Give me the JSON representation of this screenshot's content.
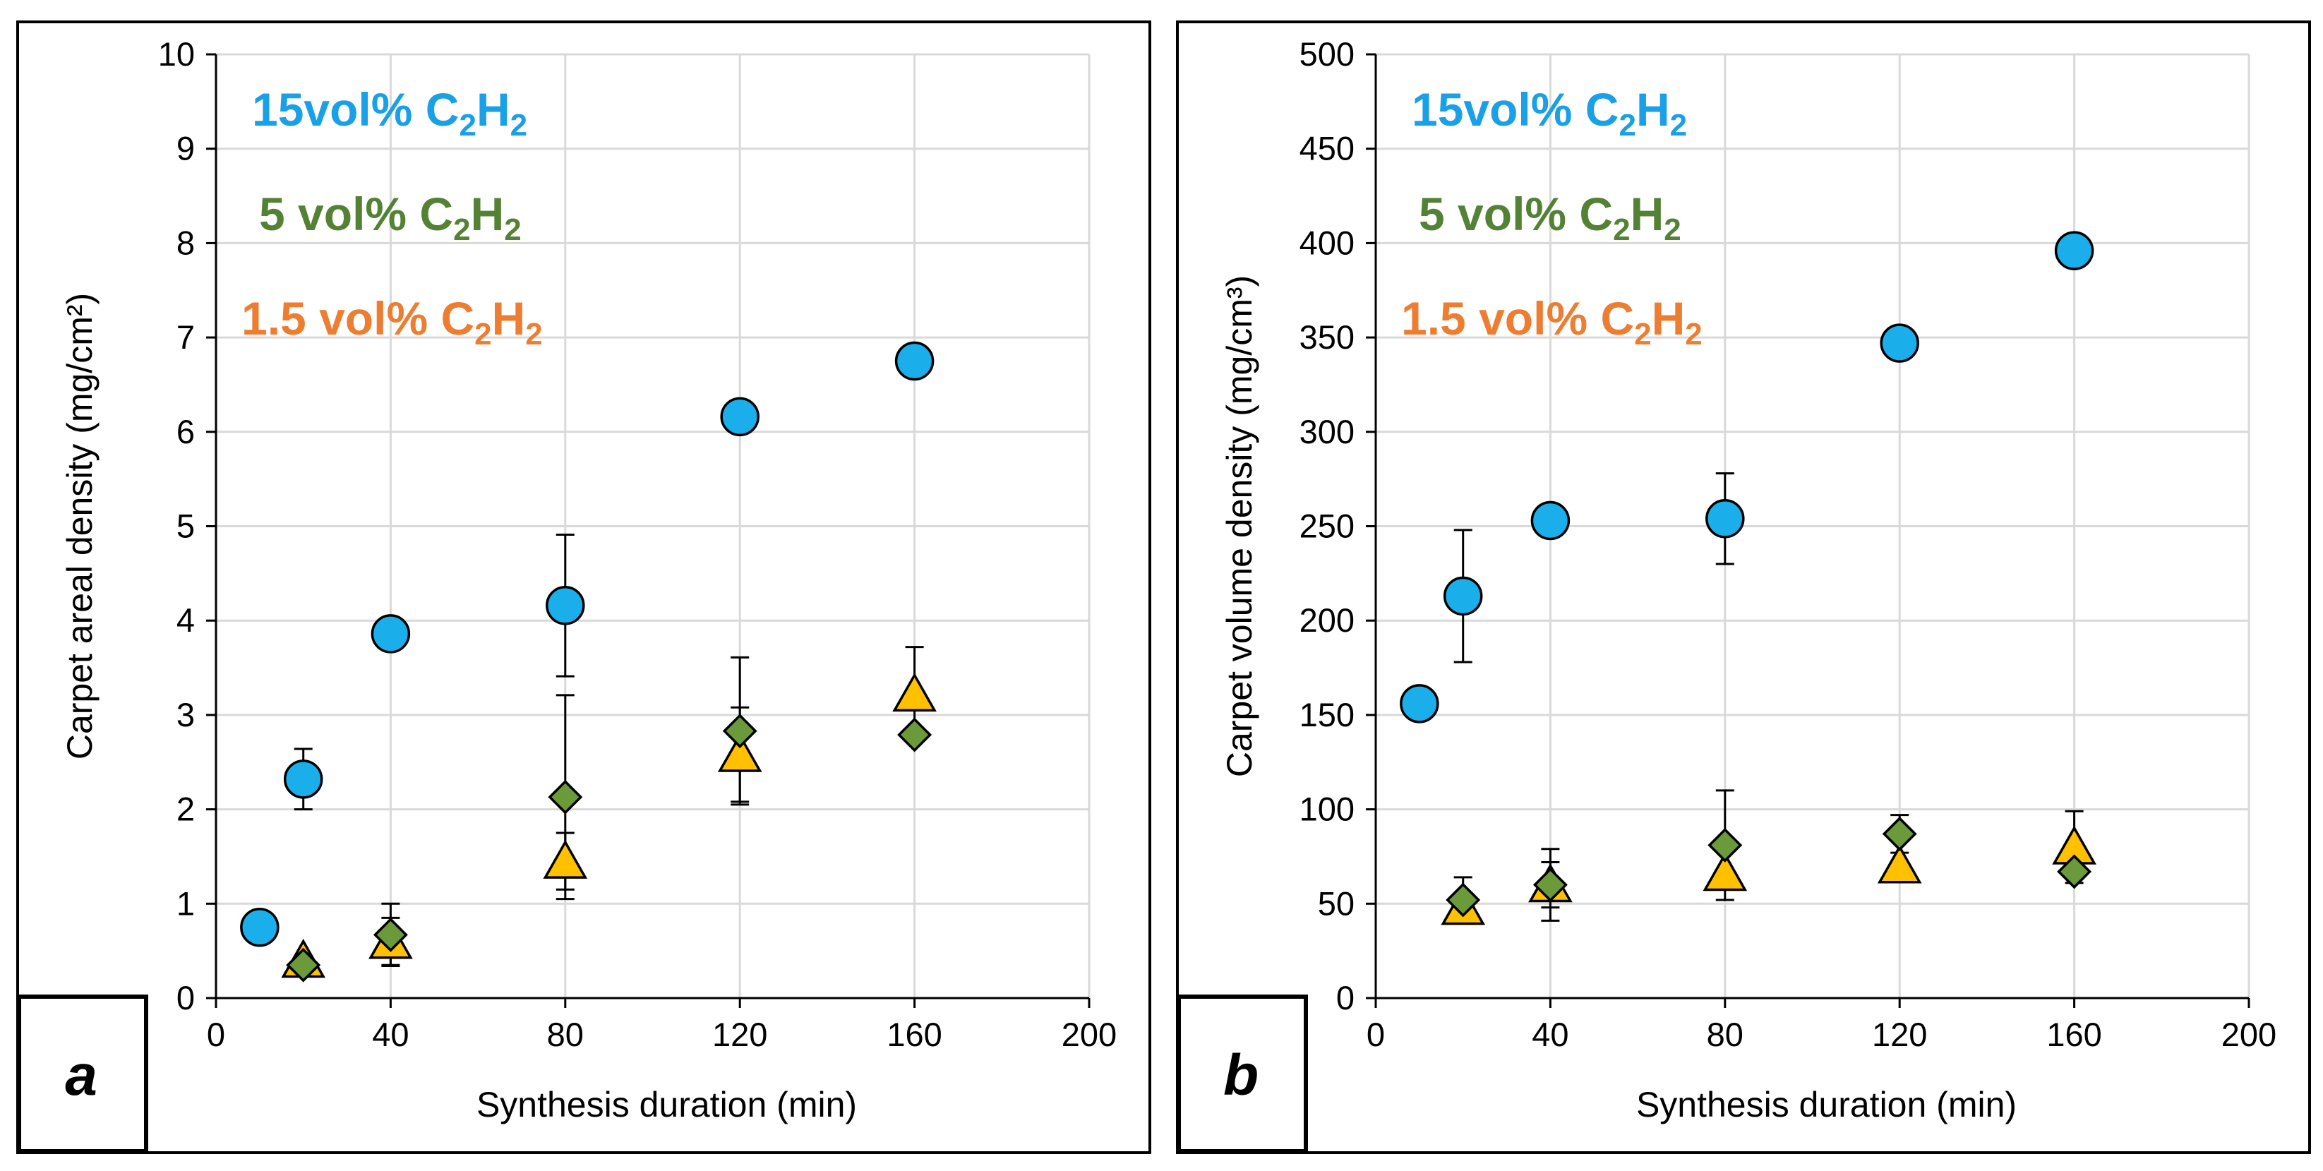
{
  "colors": {
    "s15": "#1AAFEB",
    "s5": "#6A9A3A",
    "s1_5": "#FFC000",
    "legend15": "#1AA0E6",
    "legend5": "#548235",
    "legend1_5": "#ED7D31"
  },
  "legend": [
    {
      "key": "s15",
      "text": "15vol% C",
      "sub1": "2",
      "mid": "H",
      "sub2": "2"
    },
    {
      "key": "s5",
      "text": "5 vol% C",
      "sub1": "2",
      "mid": "H",
      "sub2": "2"
    },
    {
      "key": "s1_5",
      "text": "1.5 vol% C",
      "sub1": "2",
      "mid": "H",
      "sub2": "2"
    }
  ],
  "chart_data": [
    {
      "id": "a",
      "panel_letter": "a",
      "type": "scatter",
      "xlabel": "Synthesis duration (min)",
      "ylabel": "Carpet areal density (mg/cm²)",
      "xlim": [
        0,
        200
      ],
      "ylim": [
        0,
        10
      ],
      "xticks": [
        0,
        40,
        80,
        120,
        160,
        200
      ],
      "yticks": [
        0,
        1,
        2,
        3,
        4,
        5,
        6,
        7,
        8,
        9,
        10
      ],
      "grid": true,
      "series": [
        {
          "name": "15vol% C2H2",
          "key": "s15",
          "marker": "circle",
          "points": [
            {
              "x": 10,
              "y": 0.75
            },
            {
              "x": 20,
              "y": 2.32,
              "err": 0.32
            },
            {
              "x": 40,
              "y": 3.86
            },
            {
              "x": 80,
              "y": 4.16,
              "err": 0.75
            },
            {
              "x": 120,
              "y": 6.16
            },
            {
              "x": 160,
              "y": 6.75
            }
          ]
        },
        {
          "name": "1.5 vol% C2H2",
          "key": "s1_5",
          "marker": "triangle",
          "points": [
            {
              "x": 20,
              "y": 0.4
            },
            {
              "x": 40,
              "y": 0.6,
              "err": 0.25
            },
            {
              "x": 80,
              "y": 1.45,
              "err": 0.3
            },
            {
              "x": 120,
              "y": 2.58,
              "err": 0.5
            },
            {
              "x": 160,
              "y": 3.22,
              "err": 0.5
            }
          ]
        },
        {
          "name": "5 vol% C2H2",
          "key": "s5",
          "marker": "diamond",
          "points": [
            {
              "x": 20,
              "y": 0.35
            },
            {
              "x": 40,
              "y": 0.67,
              "err": 0.33
            },
            {
              "x": 80,
              "y": 2.13,
              "err": 1.08
            },
            {
              "x": 120,
              "y": 2.83,
              "err": 0.78
            },
            {
              "x": 160,
              "y": 2.79
            }
          ]
        }
      ]
    },
    {
      "id": "b",
      "panel_letter": "b",
      "type": "scatter",
      "xlabel": "Synthesis duration (min)",
      "ylabel": "Carpet volume density (mg/cm³)",
      "xlim": [
        0,
        200
      ],
      "ylim": [
        0,
        500
      ],
      "xticks": [
        0,
        40,
        80,
        120,
        160,
        200
      ],
      "yticks": [
        0,
        50,
        100,
        150,
        200,
        250,
        300,
        350,
        400,
        450,
        500
      ],
      "grid": true,
      "series": [
        {
          "name": "15vol% C2H2",
          "key": "s15",
          "marker": "circle",
          "points": [
            {
              "x": 10,
              "y": 156
            },
            {
              "x": 20,
              "y": 213,
              "err": 35
            },
            {
              "x": 40,
              "y": 253
            },
            {
              "x": 80,
              "y": 254,
              "err": 24
            },
            {
              "x": 120,
              "y": 347
            },
            {
              "x": 160,
              "y": 396
            }
          ]
        },
        {
          "name": "1.5 vol% C2H2",
          "key": "s1_5",
          "marker": "triangle",
          "points": [
            {
              "x": 20,
              "y": 48
            },
            {
              "x": 40,
              "y": 60,
              "err": 12
            },
            {
              "x": 80,
              "y": 66
            },
            {
              "x": 120,
              "y": 70
            },
            {
              "x": 160,
              "y": 80,
              "err": 19
            }
          ]
        },
        {
          "name": "5 vol% C2H2",
          "key": "s5",
          "marker": "diamond",
          "points": [
            {
              "x": 20,
              "y": 52,
              "err": 12
            },
            {
              "x": 40,
              "y": 60,
              "err": 19
            },
            {
              "x": 80,
              "y": 81,
              "err": 29
            },
            {
              "x": 120,
              "y": 87,
              "err": 10
            },
            {
              "x": 160,
              "y": 67
            }
          ]
        }
      ]
    }
  ]
}
